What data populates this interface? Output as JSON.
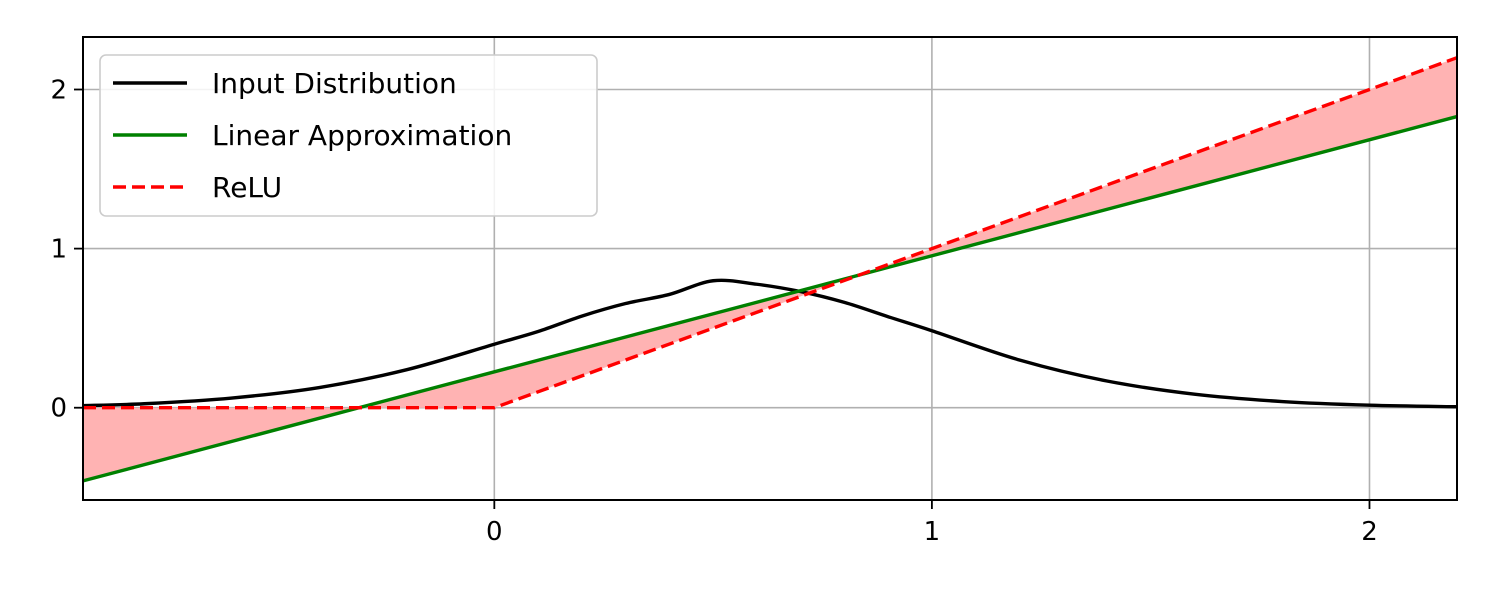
{
  "chart_data": {
    "type": "line",
    "title": "",
    "xlabel": "",
    "ylabel": "",
    "xlim": [
      -0.94,
      2.2
    ],
    "ylim": [
      -0.58,
      2.33
    ],
    "grid": true,
    "legend_position": "top-left",
    "x_ticks": [
      {
        "value": 0,
        "label": "0"
      },
      {
        "value": 1,
        "label": "1"
      },
      {
        "value": 2,
        "label": "2"
      }
    ],
    "y_ticks": [
      {
        "value": 0,
        "label": "0"
      },
      {
        "value": 1,
        "label": "1"
      },
      {
        "value": 2,
        "label": "2"
      }
    ],
    "series": [
      {
        "name": "Input Distribution",
        "color": "#000000",
        "style": "solid",
        "x": [
          -0.94,
          -0.8,
          -0.6,
          -0.4,
          -0.2,
          0.0,
          0.1,
          0.2,
          0.3,
          0.4,
          0.5,
          0.6,
          0.7,
          0.8,
          0.9,
          1.0,
          1.2,
          1.4,
          1.6,
          1.8,
          2.0,
          2.2
        ],
        "y": [
          0.013,
          0.025,
          0.061,
          0.127,
          0.239,
          0.399,
          0.479,
          0.576,
          0.655,
          0.712,
          0.798,
          0.776,
          0.73,
          0.662,
          0.572,
          0.484,
          0.3,
          0.168,
          0.085,
          0.039,
          0.016,
          0.006
        ]
      },
      {
        "name": "Linear Approximation",
        "color": "#008000",
        "style": "solid",
        "x": [
          -0.94,
          2.2
        ],
        "y": [
          -0.46,
          1.83
        ]
      },
      {
        "name": "ReLU",
        "color": "#ff0000",
        "style": "dashed",
        "x": [
          -0.94,
          0.0,
          2.2
        ],
        "y": [
          0.0,
          0.0,
          2.2
        ]
      }
    ],
    "fill_between": {
      "series_a": "Linear Approximation",
      "series_b": "ReLU",
      "color": "#ffb3b3"
    }
  }
}
